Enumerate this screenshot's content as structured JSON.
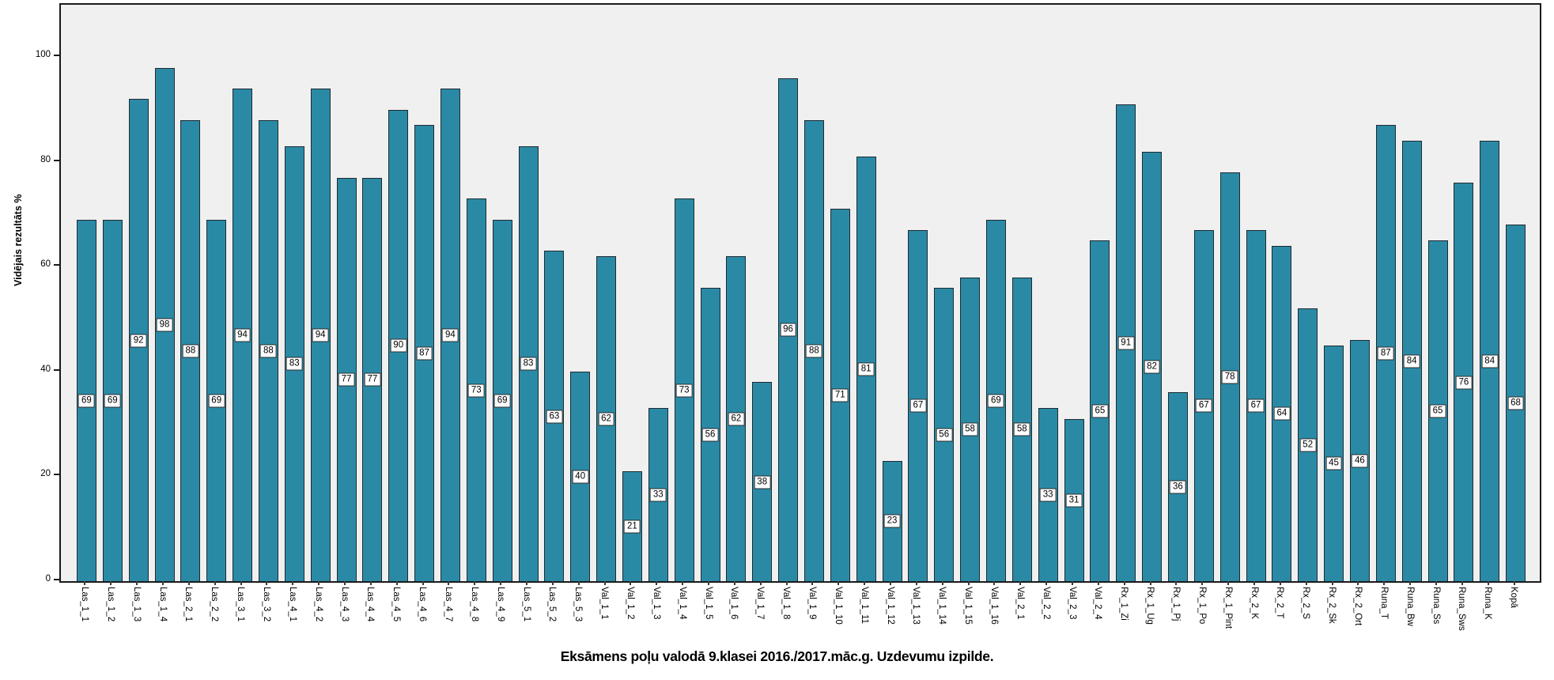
{
  "chart_data": {
    "type": "bar",
    "title": "Eksāmens poļu valodā 9.klasei 2016./2017.māc.g. Uzdevumu izpilde.",
    "xlabel": "",
    "ylabel": "Vidējais rezultāts %",
    "ylim": [
      0,
      110
    ],
    "yticks": [
      0,
      20,
      40,
      60,
      80,
      100
    ],
    "grid": false,
    "legend_position": "none",
    "value_labels_shown": true,
    "bar_color": "#2a8aa6",
    "plot_background": "#f0f0f0",
    "categories": [
      "Las_1_1",
      "Las_1_2",
      "Las_1_3",
      "Las_1_4",
      "Las_2_1",
      "Las_2_2",
      "Las_3_1",
      "Las_3_2",
      "Las_4_1",
      "Las_4_2",
      "Las_4_3",
      "Las_4_4",
      "Las_4_5",
      "Las_4_6",
      "Las_4_7",
      "Las_4_8",
      "Las_4_9",
      "Las_5_1",
      "Las_5_2",
      "Las_5_3",
      "Val_1_1",
      "Val_1_2",
      "Val_1_3",
      "Val_1_4",
      "Val_1_5",
      "Val_1_6",
      "Val_1_7",
      "Val_1_8",
      "Val_1_9",
      "Val_1_10",
      "Val_1_11",
      "Val_1_12",
      "Val_1_13",
      "Val_1_14",
      "Val_1_15",
      "Val_1_16",
      "Val_2_1",
      "Val_2_2",
      "Val_2_3",
      "Val_2_4",
      "Rx_1_Zi",
      "Rx_1_Ug",
      "Rx_1_Pj",
      "Rx_1_Po",
      "Rx_1_Pint",
      "Rx_2_K",
      "Rx_2_T",
      "Rx_2_S",
      "Rx_2_Sk",
      "Rx_2_Ort",
      "Runa_T",
      "Runa_Bw",
      "Runa_Ss",
      "Runa_Sws",
      "Runa_K",
      "Kopā"
    ],
    "values": [
      69,
      69,
      92,
      98,
      88,
      69,
      94,
      88,
      83,
      94,
      77,
      77,
      90,
      87,
      94,
      73,
      69,
      83,
      63,
      40,
      62,
      21,
      33,
      73,
      56,
      62,
      38,
      96,
      88,
      71,
      81,
      23,
      67,
      56,
      58,
      69,
      58,
      33,
      31,
      65,
      91,
      82,
      36,
      67,
      78,
      67,
      64,
      52,
      45,
      46,
      87,
      84,
      65,
      76,
      84,
      68
    ]
  }
}
